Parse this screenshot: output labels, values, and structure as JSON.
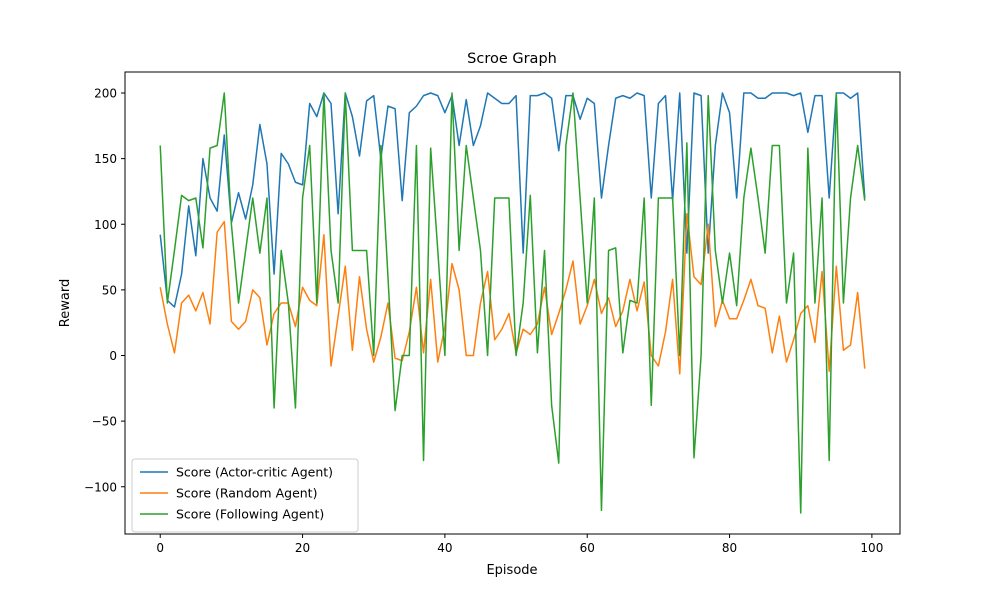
{
  "chart_data": {
    "type": "line",
    "title": "Scroe Graph",
    "xlabel": "Episode",
    "ylabel": "Reward",
    "xlim": [
      -4.95,
      103.95
    ],
    "ylim": [
      -136,
      216
    ],
    "xticks": [
      "0",
      "20",
      "40",
      "60",
      "80",
      "100"
    ],
    "yticks": [
      "−100",
      "−50",
      "0",
      "50",
      "100",
      "150",
      "200"
    ],
    "grid": false,
    "legend_position": "lower-left",
    "x": [
      0,
      1,
      2,
      3,
      4,
      5,
      6,
      7,
      8,
      9,
      10,
      11,
      12,
      13,
      14,
      15,
      16,
      17,
      18,
      19,
      20,
      21,
      22,
      23,
      24,
      25,
      26,
      27,
      28,
      29,
      30,
      31,
      32,
      33,
      34,
      35,
      36,
      37,
      38,
      39,
      40,
      41,
      42,
      43,
      44,
      45,
      46,
      47,
      48,
      49,
      50,
      51,
      52,
      53,
      54,
      55,
      56,
      57,
      58,
      59,
      60,
      61,
      62,
      63,
      64,
      65,
      66,
      67,
      68,
      69,
      70,
      71,
      72,
      73,
      74,
      75,
      76,
      77,
      78,
      79,
      80,
      81,
      82,
      83,
      84,
      85,
      86,
      87,
      88,
      89,
      90,
      91,
      92,
      93,
      94,
      95,
      96,
      97,
      98,
      99
    ],
    "series": [
      {
        "name": "Score (Actor-critic Agent)",
        "color": "#1f77b4",
        "values": [
          92,
          42,
          37,
          62,
          114,
          76,
          150,
          120,
          110,
          168,
          101,
          124,
          104,
          130,
          176,
          146,
          62,
          154,
          146,
          132,
          130,
          192,
          182,
          200,
          192,
          108,
          200,
          182,
          152,
          194,
          198,
          150,
          190,
          188,
          118,
          185,
          190,
          198,
          200,
          198,
          185,
          198,
          160,
          195,
          160,
          175,
          200,
          196,
          192,
          192,
          198,
          78,
          198,
          198,
          200,
          196,
          156,
          198,
          198,
          180,
          196,
          192,
          120,
          160,
          196,
          198,
          196,
          200,
          198,
          120,
          192,
          198,
          118,
          200,
          78,
          200,
          198,
          78,
          160,
          200,
          185,
          120,
          200,
          200,
          196,
          196,
          200,
          200,
          200,
          198,
          200,
          170,
          198,
          198,
          120,
          200,
          200,
          196,
          200,
          120
        ]
      },
      {
        "name": "Score (Random Agent)",
        "color": "#ff7f0e",
        "values": [
          52,
          24,
          2,
          40,
          46,
          34,
          48,
          24,
          94,
          102,
          26,
          20,
          26,
          50,
          44,
          8,
          32,
          40,
          40,
          22,
          52,
          42,
          38,
          92,
          -8,
          30,
          68,
          4,
          60,
          20,
          -5,
          14,
          40,
          -2,
          -4,
          18,
          52,
          2,
          58,
          -5,
          22,
          70,
          50,
          0,
          0,
          40,
          64,
          12,
          20,
          32,
          2,
          20,
          16,
          24,
          52,
          16,
          32,
          50,
          72,
          24,
          38,
          58,
          32,
          44,
          22,
          34,
          58,
          34,
          56,
          0,
          -8,
          18,
          58,
          -14,
          108,
          60,
          54,
          100,
          22,
          42,
          28,
          28,
          42,
          58,
          38,
          36,
          2,
          30,
          -5,
          12,
          32,
          38,
          10,
          64,
          -12,
          68,
          4,
          8,
          48,
          -10
        ]
      },
      {
        "name": "Score (Following Agent)",
        "color": "#2ca02c",
        "values": [
          160,
          40,
          80,
          122,
          118,
          120,
          82,
          158,
          160,
          200,
          100,
          40,
          80,
          120,
          78,
          120,
          -40,
          80,
          40,
          -40,
          120,
          160,
          40,
          200,
          80,
          40,
          200,
          80,
          80,
          80,
          0,
          160,
          60,
          -42,
          0,
          0,
          160,
          -80,
          158,
          80,
          0,
          200,
          80,
          160,
          120,
          80,
          0,
          120,
          120,
          120,
          0,
          40,
          122,
          2,
          80,
          -38,
          -82,
          160,
          200,
          120,
          40,
          120,
          -118,
          80,
          82,
          2,
          42,
          40,
          120,
          -38,
          120,
          120,
          120,
          0,
          162,
          -78,
          0,
          198,
          80,
          40,
          78,
          38,
          120,
          158,
          120,
          78,
          160,
          160,
          40,
          78,
          -120,
          158,
          40,
          120,
          -80,
          200,
          40,
          120,
          160,
          118
        ]
      }
    ]
  }
}
